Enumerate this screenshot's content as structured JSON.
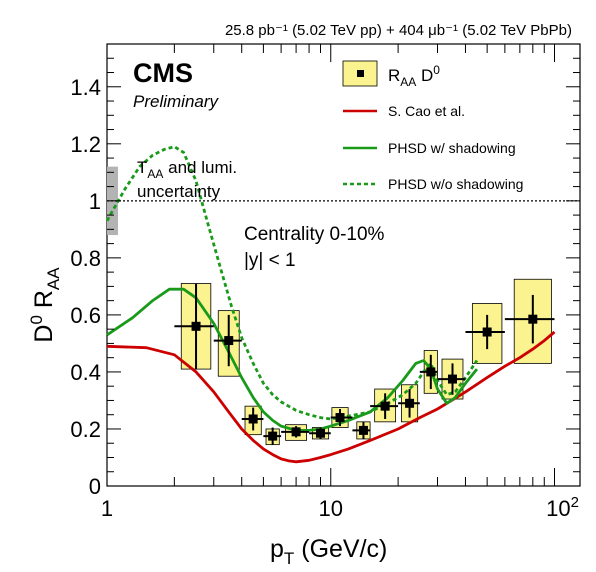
{
  "chart_data": {
    "type": "line",
    "header": "25.8 pb⁻¹ (5.02 TeV pp) + 404 μb⁻¹ (5.02 TeV PbPb)",
    "experiment": "CMS",
    "status": "Preliminary",
    "xlabel": "p_T (GeV/c)",
    "ylabel": "D⁰ R_AA",
    "x_scale": "log",
    "xlim": [
      1,
      130
    ],
    "ylim": [
      0,
      1.55
    ],
    "x_ticks": [
      {
        "value": 1,
        "label": "1"
      },
      {
        "value": 10,
        "label": "10"
      },
      {
        "value": 100,
        "label": "10²"
      }
    ],
    "y_ticks": [
      0,
      0.2,
      0.4,
      0.6,
      0.8,
      1,
      1.2,
      1.4
    ],
    "reference_line": {
      "y": 1,
      "style": "dotted"
    },
    "global_uncertainty": {
      "label": "T_AA and lumi. uncertainty",
      "y_low": 0.88,
      "y_high": 1.12,
      "x_low": 1.0,
      "x_high": 1.12,
      "color": "#b3b3b3"
    },
    "annotations": [
      "Centrality 0-10%",
      "|y| < 1"
    ],
    "legend": {
      "placement": "top-right",
      "entries": [
        {
          "label": "R_AA D⁰",
          "kind": "data"
        },
        {
          "label": "S. Cao et al.",
          "kind": "line",
          "color": "#cc0000"
        },
        {
          "label": "PHSD w/ shadowing",
          "kind": "line",
          "color": "#1a9a1a"
        },
        {
          "label": "PHSD w/o shadowing",
          "kind": "dotted",
          "color": "#1a9a1a"
        }
      ]
    },
    "points": {
      "name": "R_AA D⁰",
      "x": [
        2.5,
        3.5,
        4.5,
        5.5,
        7.0,
        9.0,
        11.0,
        14.0,
        17.5,
        22.5,
        28.0,
        35.0,
        50.0,
        80.0
      ],
      "x_low": [
        2.0,
        3.0,
        4.0,
        5.0,
        6.0,
        8.0,
        10.0,
        12.5,
        15.0,
        20.0,
        25.0,
        30.0,
        40.0,
        60.0
      ],
      "x_high": [
        3.0,
        4.0,
        5.0,
        6.0,
        8.0,
        10.0,
        12.5,
        15.0,
        20.0,
        25.0,
        30.0,
        40.0,
        60.0,
        100.0
      ],
      "y": [
        0.56,
        0.51,
        0.235,
        0.175,
        0.19,
        0.185,
        0.24,
        0.195,
        0.28,
        0.29,
        0.4,
        0.375,
        0.54,
        0.585
      ],
      "stat_err": [
        0.15,
        0.09,
        0.04,
        0.03,
        0.02,
        0.02,
        0.03,
        0.03,
        0.045,
        0.05,
        0.06,
        0.055,
        0.06,
        0.085
      ],
      "sys_low": [
        0.41,
        0.385,
        0.18,
        0.145,
        0.16,
        0.165,
        0.205,
        0.165,
        0.225,
        0.225,
        0.325,
        0.305,
        0.43,
        0.43
      ],
      "sys_high": [
        0.71,
        0.615,
        0.28,
        0.2,
        0.215,
        0.205,
        0.275,
        0.225,
        0.34,
        0.355,
        0.475,
        0.445,
        0.64,
        0.725
      ]
    },
    "series": [
      {
        "name": "S. Cao et al.",
        "color": "#cc0000",
        "dash": "",
        "x": [
          1,
          1.5,
          2,
          2.5,
          3,
          3.5,
          4,
          4.5,
          5,
          5.5,
          6,
          6.5,
          7,
          8,
          9,
          10,
          12,
          15,
          20,
          25,
          30,
          40,
          50,
          60,
          70,
          80,
          90,
          100
        ],
        "y": [
          0.49,
          0.485,
          0.46,
          0.4,
          0.33,
          0.26,
          0.2,
          0.16,
          0.13,
          0.11,
          0.095,
          0.088,
          0.085,
          0.09,
          0.1,
          0.11,
          0.13,
          0.16,
          0.2,
          0.24,
          0.27,
          0.33,
          0.38,
          0.42,
          0.45,
          0.48,
          0.51,
          0.54
        ]
      },
      {
        "name": "PHSD w/ shadowing",
        "color": "#1a9a1a",
        "dash": "",
        "x": [
          1,
          1.3,
          1.6,
          1.9,
          2.2,
          2.5,
          3,
          3.5,
          4,
          4.5,
          5,
          5.5,
          6,
          7,
          8,
          9,
          10,
          12,
          15,
          18,
          21,
          24,
          26,
          28,
          30,
          33,
          36,
          40,
          45
        ],
        "y": [
          0.53,
          0.59,
          0.65,
          0.69,
          0.69,
          0.66,
          0.57,
          0.47,
          0.38,
          0.31,
          0.26,
          0.23,
          0.21,
          0.195,
          0.195,
          0.2,
          0.21,
          0.23,
          0.26,
          0.31,
          0.37,
          0.43,
          0.44,
          0.41,
          0.34,
          0.29,
          0.31,
          0.36,
          0.41
        ]
      },
      {
        "name": "PHSD w/o shadowing",
        "color": "#1a9a1a",
        "dash": "4 3",
        "x": [
          1,
          1.2,
          1.4,
          1.6,
          1.8,
          2.0,
          2.2,
          2.5,
          2.8,
          3.2,
          3.6,
          4.0,
          4.5,
          5.0,
          5.5,
          6,
          7,
          8,
          9,
          10,
          12,
          15,
          18,
          21,
          24,
          26,
          28,
          30,
          33,
          36,
          40,
          45
        ],
        "y": [
          0.93,
          1.04,
          1.12,
          1.16,
          1.18,
          1.19,
          1.17,
          1.07,
          0.93,
          0.77,
          0.63,
          0.52,
          0.43,
          0.36,
          0.32,
          0.295,
          0.265,
          0.25,
          0.24,
          0.235,
          0.245,
          0.26,
          0.29,
          0.32,
          0.36,
          0.4,
          0.43,
          0.37,
          0.32,
          0.33,
          0.38,
          0.44
        ]
      }
    ]
  }
}
